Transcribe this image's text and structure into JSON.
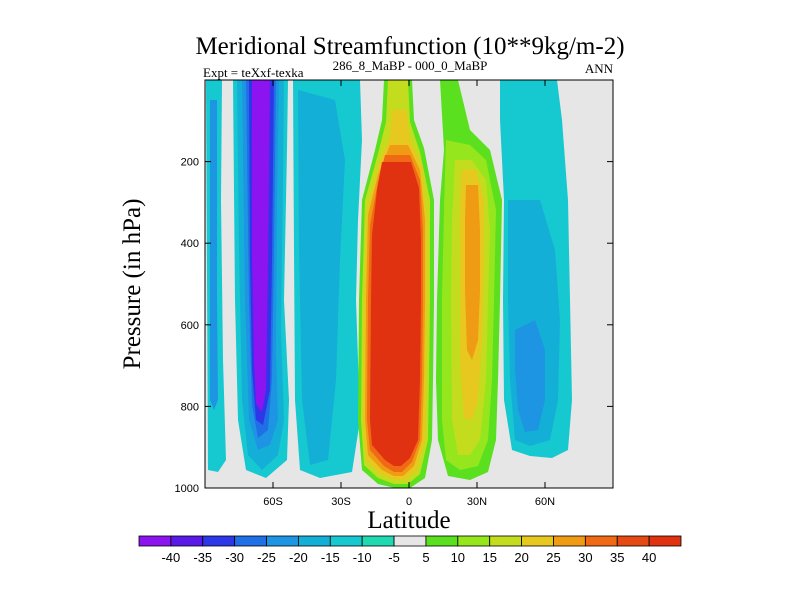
{
  "chart_data": {
    "type": "heatmap",
    "title": "Meridional Streamfunction (10**9kg/m-2)",
    "subtitle_left": "Expt = teXxf-texka",
    "subtitle_center": "286_8_MaBP - 000_0_MaBP",
    "subtitle_right": "ANN",
    "xlabel": "Latitude",
    "ylabel": "Pressure (in hPa)",
    "xlim": [
      -90,
      90
    ],
    "ylim": [
      0,
      1000
    ],
    "x_ticks": [
      {
        "value": -60,
        "label": "60S"
      },
      {
        "value": -30,
        "label": "30S"
      },
      {
        "value": 0,
        "label": "0"
      },
      {
        "value": 30,
        "label": "30N"
      },
      {
        "value": 60,
        "label": "60N"
      }
    ],
    "y_ticks": [
      {
        "value": 200,
        "label": "200"
      },
      {
        "value": 400,
        "label": "400"
      },
      {
        "value": 600,
        "label": "600"
      },
      {
        "value": 800,
        "label": "800"
      },
      {
        "value": 1000,
        "label": "1000"
      }
    ],
    "colorbar": {
      "labels": [
        "-40",
        "-35",
        "-30",
        "-25",
        "-20",
        "-15",
        "-10",
        "-5",
        "5",
        "10",
        "15",
        "20",
        "25",
        "30",
        "35",
        "40"
      ],
      "colors": [
        "#8c14f0",
        "#5a19e6",
        "#2d37e8",
        "#1f6fe6",
        "#1e95e2",
        "#14afd7",
        "#16c8d0",
        "#20d9b0",
        "#e6e6e6",
        "#5ae01e",
        "#96e61e",
        "#c3dc1e",
        "#e6c81e",
        "#f09b14",
        "#f06914",
        "#e64a14",
        "#e03210"
      ]
    },
    "field": [
      {
        "name": "southern-polar-cell",
        "lat_range": [
          -88,
          -82
        ],
        "p_range": [
          20,
          970
        ],
        "value": -12
      },
      {
        "name": "southern-ferrel-cell",
        "lat_range": [
          -65,
          -55
        ],
        "p_range": [
          0,
          960
        ],
        "value": -40
      },
      {
        "name": "southern-midlat-cell",
        "lat_range": [
          -52,
          -28
        ],
        "p_range": [
          10,
          980
        ],
        "value": -10
      },
      {
        "name": "equatorial-cell",
        "lat_range": [
          -12,
          10
        ],
        "p_range": [
          0,
          1000
        ],
        "value": 40
      },
      {
        "name": "northern-hadley-cell",
        "lat_range": [
          14,
          35
        ],
        "p_range": [
          0,
          990
        ],
        "value": 25
      },
      {
        "name": "northern-midlat-cell",
        "lat_range": [
          40,
          65
        ],
        "p_range": [
          0,
          960
        ],
        "value": -15
      }
    ]
  }
}
